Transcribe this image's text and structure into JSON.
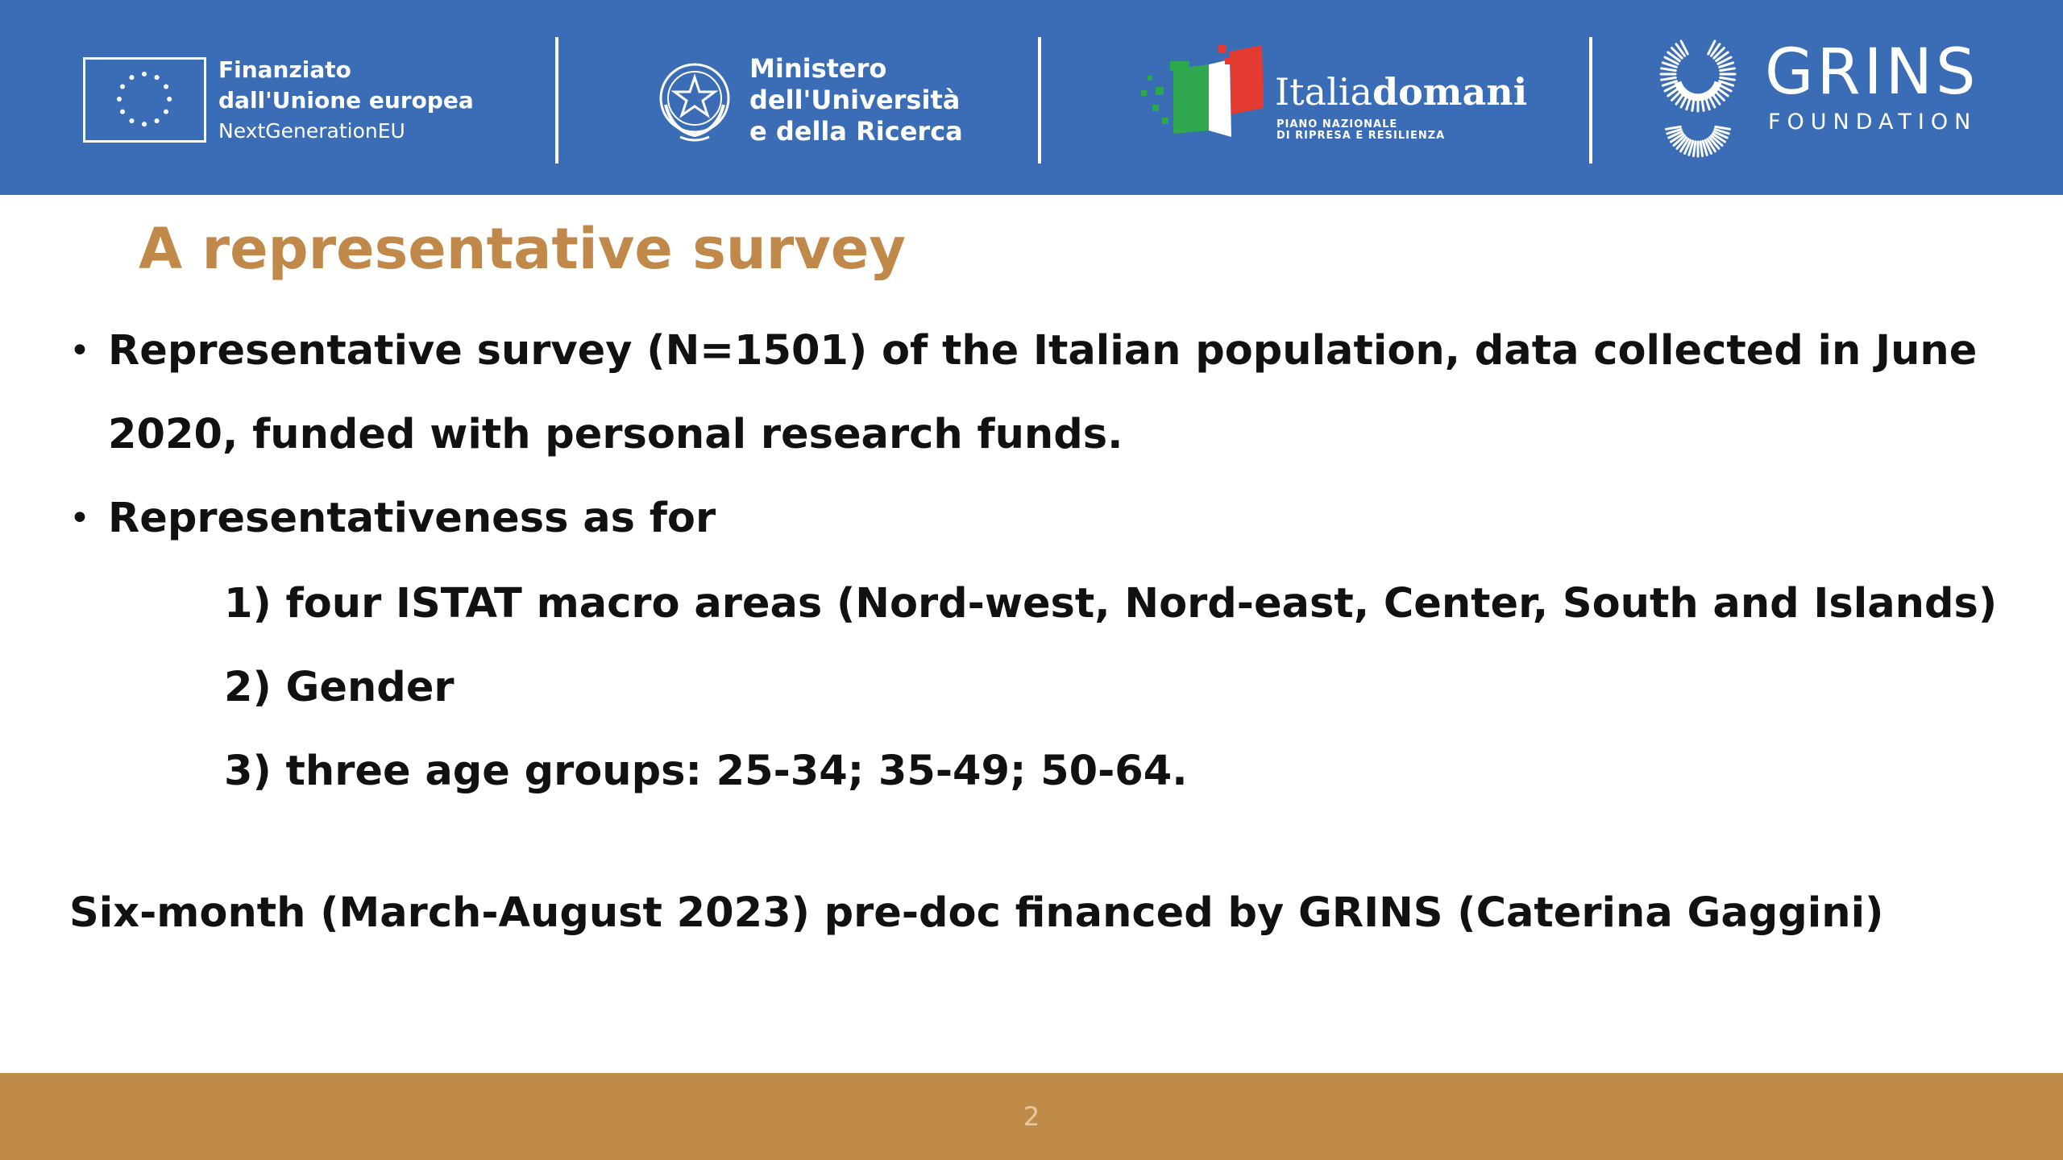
{
  "theme": {
    "header_bg": "#3a6db5",
    "accent": "#c0894a",
    "footer_bg": "#c08b48"
  },
  "header": {
    "eu": {
      "icon": "eu-flag-icon",
      "line1": "Finanziato",
      "line2": "dall'Unione europea",
      "line3": "NextGenerationEU"
    },
    "mur": {
      "icon": "italian-republic-emblem-icon",
      "line1": "Ministero",
      "line2": "dell'Università",
      "line3": "e della Ricerca"
    },
    "italiadomani": {
      "icon": "italiadomani-flag-icon",
      "title_regular": "Italia",
      "title_bold": "domani",
      "sub1": "PIANO NAZIONALE",
      "sub2": "DI RIPRESA E RESILIENZA"
    },
    "grins": {
      "icon": "grins-logo-icon",
      "title": "GRINS",
      "subtitle": "FOUNDATION"
    }
  },
  "slide": {
    "title": "A representative survey",
    "bullets": [
      {
        "line1": "Representative survey (N=1501) of the Italian population, data collected in June",
        "line2": "2020, funded with personal research funds."
      },
      {
        "line1": "Representativeness as for"
      }
    ],
    "sub_items": [
      "1) four ISTAT macro areas (Nord-west, Nord-east, Center, South and Islands)",
      "2) Gender",
      "3) three age groups: 25-34; 35-49; 50-64."
    ],
    "note": "Six-month (March-August 2023) pre-doc financed by GRINS (Caterina Gaggini)"
  },
  "footer": {
    "page_number": "2"
  }
}
